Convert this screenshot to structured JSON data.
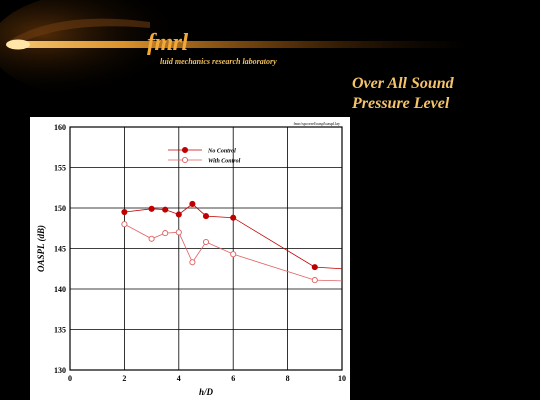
{
  "header": {
    "logo_main": "fmrl",
    "logo_sub": "luid mechanics research laboratory",
    "title_line1": "Over All Sound",
    "title_line2": "Pressure Level"
  },
  "colors": {
    "accent": "#f2a93a",
    "series_no_control": "#c00000",
    "series_with_control": "#e06060"
  },
  "chart_data": {
    "type": "line",
    "source_note": "fmrc\\spcorrel\\oaspl\\oaspl.lay",
    "xlabel": "h/D",
    "ylabel": "OASPL (dB)",
    "xlim": [
      0,
      10
    ],
    "ylim": [
      130,
      160
    ],
    "x_ticks": [
      0,
      2,
      4,
      6,
      8,
      10
    ],
    "y_ticks": [
      130,
      135,
      140,
      145,
      150,
      155,
      160
    ],
    "grid": true,
    "legend_position": "top-center",
    "series": [
      {
        "name": "No Control",
        "marker": "filled-circle",
        "x": [
          2,
          3,
          3.5,
          4,
          4.5,
          5,
          6,
          9
        ],
        "y": [
          149.5,
          149.9,
          149.8,
          149.2,
          150.5,
          149.0,
          148.8,
          142.7
        ],
        "tail_x": 10,
        "tail_y": 142.5
      },
      {
        "name": "With Control",
        "marker": "open-circle",
        "x": [
          2,
          3,
          3.5,
          4,
          4.5,
          5,
          6,
          9
        ],
        "y": [
          148.0,
          146.2,
          146.9,
          147.0,
          143.3,
          145.8,
          144.3,
          141.1
        ],
        "tail_x": 10,
        "tail_y": 141.0
      }
    ]
  }
}
